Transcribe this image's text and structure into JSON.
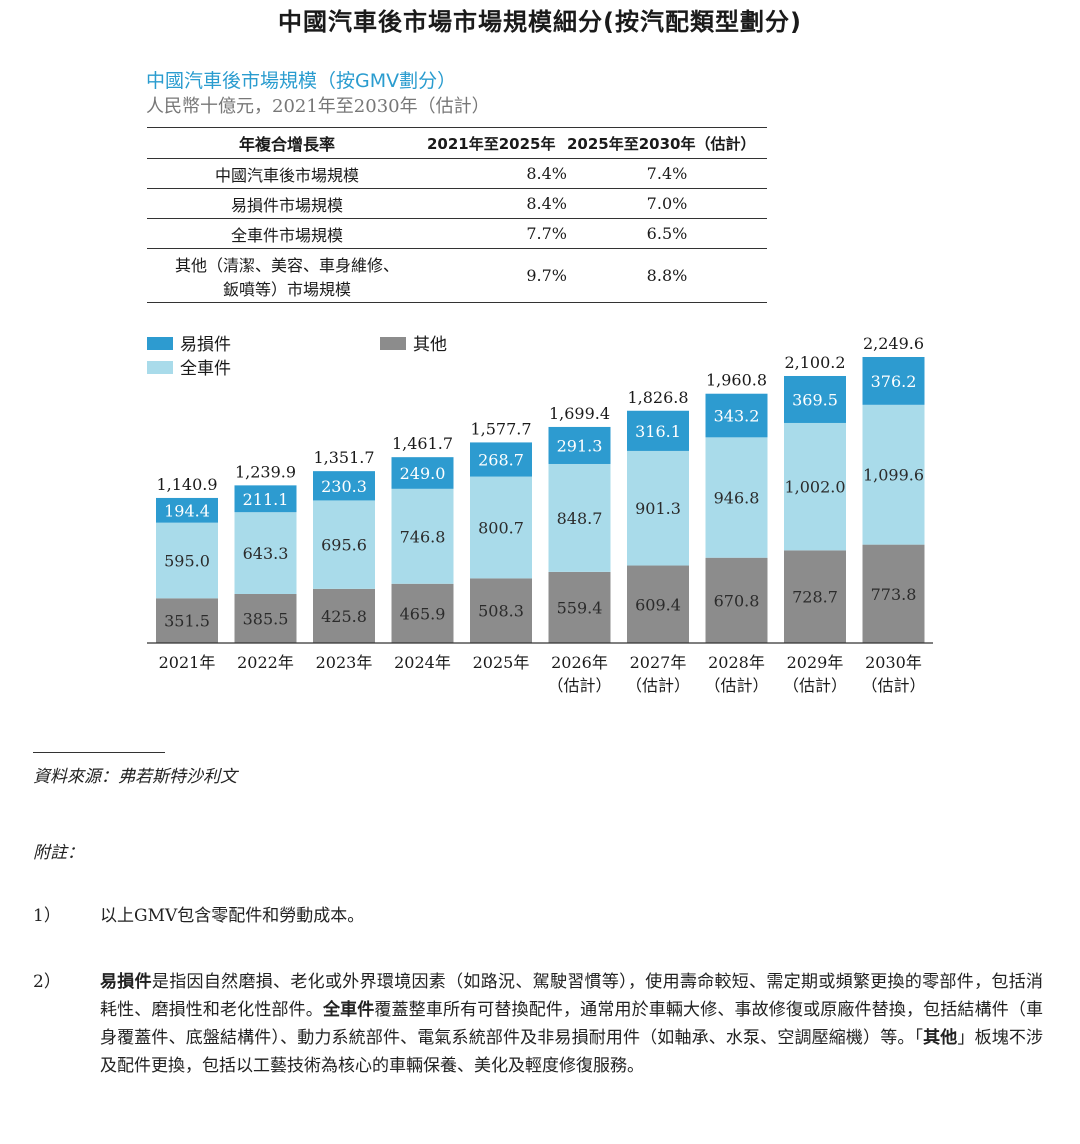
{
  "page_title": "中國汽車後市場市場規模細分(按汽配類型劃分)",
  "chart_title": "中國汽車後市場規模（按GMV劃分）",
  "chart_subtitle": "人民幣十億元，2021年至2030年（估計）",
  "cagr_table": {
    "headers": [
      "年複合增長率",
      "2021年至2025年",
      "2025年至2030年（估計）"
    ],
    "rows": [
      {
        "label": "中國汽車後市場規模",
        "v1": "8.4%",
        "v2": "7.4%"
      },
      {
        "label": "易損件市場規模",
        "v1": "8.4%",
        "v2": "7.0%"
      },
      {
        "label": "全車件市場規模",
        "v1": "7.7%",
        "v2": "6.5%"
      },
      {
        "label_line1": "其他（清潔、美容、車身維修、",
        "label_line2": "鈑噴等）市場規模",
        "v1": "9.7%",
        "v2": "8.8%"
      }
    ]
  },
  "chart_data": {
    "type": "bar",
    "stacked": true,
    "categories": [
      "2021年",
      "2022年",
      "2023年",
      "2024年",
      "2025年",
      "2026年",
      "2027年",
      "2028年",
      "2029年",
      "2030年"
    ],
    "category_sublabels": [
      "",
      "",
      "",
      "",
      "",
      "（估計）",
      "（估計）",
      "（估計）",
      "（估計）",
      "（估計）"
    ],
    "series": [
      {
        "name": "其他",
        "color": "#8c8c8c",
        "values": [
          351.5,
          385.5,
          425.8,
          465.9,
          508.3,
          559.4,
          609.4,
          670.8,
          728.7,
          773.8
        ]
      },
      {
        "name": "全車件",
        "color": "#a9dbea",
        "values": [
          595.0,
          643.3,
          695.6,
          746.8,
          800.7,
          848.7,
          901.3,
          946.8,
          1002.0,
          1099.6
        ]
      },
      {
        "name": "易損件",
        "color": "#2d9bd0",
        "values": [
          194.4,
          211.1,
          230.3,
          249.0,
          268.7,
          291.3,
          316.1,
          343.2,
          369.5,
          376.2
        ]
      }
    ],
    "totals": [
      1140.9,
      1239.9,
      1351.7,
      1461.7,
      1577.7,
      1699.4,
      1826.8,
      1960.8,
      2100.2,
      2249.6
    ],
    "legend_position": "top-left",
    "ylim": [
      0,
      2249.6
    ],
    "grid": false
  },
  "source_text": "資料來源：弗若斯特沙利文",
  "notes_heading": "附註：",
  "notes": [
    {
      "num": "1）",
      "text": "以上GMV包含零配件和勞動成本。"
    },
    {
      "num": "2）",
      "b1": "易損件",
      "t1": "是指因自然磨損、老化或外界環境因素（如路況、駕駛習慣等），使用壽命較短、需定期或頻繁更換的零部件，包括消耗性、磨損性和老化性部件。",
      "b2": "全車件",
      "t2": "覆蓋整車所有可替換配件，通常用於車輛大修、事故修復或原廠件替換，包括結構件（車身覆蓋件、底盤結構件）、動力系統部件、電氣系統部件及非易損耐用件（如軸承、水泵、空調壓縮機）等。「",
      "b3": "其他",
      "t3": "」板塊不涉及配件更換，包括以工藝技術為核心的車輛保養、美化及輕度修復服務。"
    }
  ]
}
